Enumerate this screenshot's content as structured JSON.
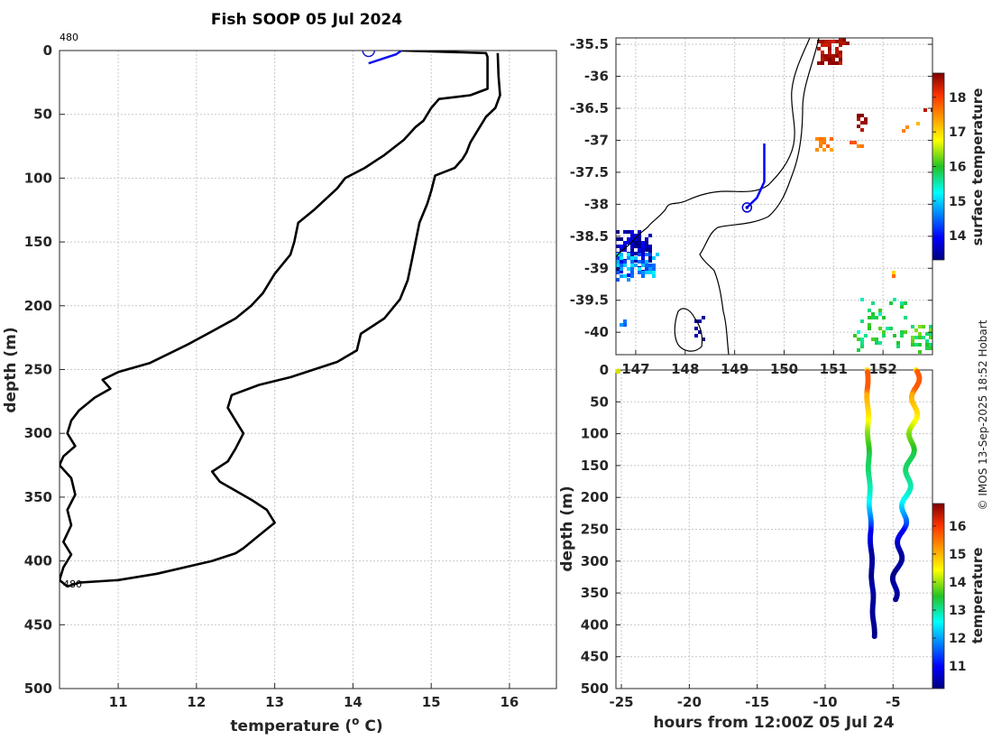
{
  "title": "Fish SOOP 05 Jul 2024",
  "credit": "© IMOS 13-Sep-2025 18:52 Hobart",
  "chart_data": [
    {
      "id": "profile",
      "type": "line",
      "xlabel_main": "temperature (",
      "xlabel_sup": "o",
      "xlabel_end": " C)",
      "ylabel": "depth (m)",
      "xlim": [
        10.25,
        16.6
      ],
      "ylim": [
        500,
        0
      ],
      "xticks": [
        11,
        12,
        13,
        14,
        15,
        16
      ],
      "yticks": [
        0,
        50,
        100,
        150,
        200,
        250,
        300,
        350,
        400,
        450,
        500
      ],
      "start_label": "480",
      "end_label": "480",
      "start_marker": {
        "t": 14.2,
        "d": 0
      },
      "recent_segment": [
        [
          14.2,
          10
        ],
        [
          14.55,
          3
        ],
        [
          14.62,
          0
        ]
      ],
      "series": [
        {
          "name": "downcast",
          "points": [
            [
              14.62,
              0
            ],
            [
              15.7,
              2
            ],
            [
              15.72,
              5
            ],
            [
              15.72,
              30
            ],
            [
              15.5,
              35
            ],
            [
              15.1,
              38
            ],
            [
              15.0,
              45
            ],
            [
              14.9,
              55
            ],
            [
              14.8,
              60
            ],
            [
              14.65,
              70
            ],
            [
              14.4,
              82
            ],
            [
              14.3,
              86
            ],
            [
              14.15,
              92
            ],
            [
              13.9,
              100
            ],
            [
              13.8,
              108
            ],
            [
              13.5,
              125
            ],
            [
              13.3,
              135
            ],
            [
              13.25,
              150
            ],
            [
              13.2,
              160
            ],
            [
              13.0,
              175
            ],
            [
              12.85,
              190
            ],
            [
              12.7,
              200
            ],
            [
              12.5,
              210
            ],
            [
              12.2,
              220
            ],
            [
              11.9,
              230
            ],
            [
              11.4,
              245
            ],
            [
              11.0,
              252
            ],
            [
              10.8,
              258
            ],
            [
              10.9,
              265
            ],
            [
              10.7,
              272
            ],
            [
              10.5,
              282
            ],
            [
              10.4,
              290
            ],
            [
              10.35,
              300
            ],
            [
              10.45,
              310
            ],
            [
              10.3,
              318
            ],
            [
              10.25,
              325
            ],
            [
              10.4,
              335
            ],
            [
              10.45,
              348
            ],
            [
              10.35,
              360
            ],
            [
              10.4,
              372
            ],
            [
              10.3,
              385
            ],
            [
              10.4,
              395
            ],
            [
              10.3,
              405
            ],
            [
              10.25,
              415
            ],
            [
              10.35,
              420
            ]
          ]
        },
        {
          "name": "upcast",
          "points": [
            [
              10.35,
              420
            ],
            [
              10.5,
              417
            ],
            [
              11.0,
              415
            ],
            [
              11.5,
              410
            ],
            [
              12.2,
              400
            ],
            [
              12.5,
              394
            ],
            [
              12.6,
              390
            ],
            [
              12.8,
              380
            ],
            [
              13.0,
              370
            ],
            [
              12.9,
              360
            ],
            [
              12.7,
              352
            ],
            [
              12.5,
              345
            ],
            [
              12.3,
              338
            ],
            [
              12.2,
              330
            ],
            [
              12.4,
              322
            ],
            [
              12.5,
              312
            ],
            [
              12.6,
              300
            ],
            [
              12.5,
              290
            ],
            [
              12.4,
              280
            ],
            [
              12.45,
              270
            ],
            [
              12.8,
              262
            ],
            [
              13.2,
              256
            ],
            [
              13.5,
              250
            ],
            [
              13.8,
              244
            ],
            [
              14.05,
              235
            ],
            [
              14.1,
              222
            ],
            [
              14.4,
              210
            ],
            [
              14.6,
              195
            ],
            [
              14.7,
              180
            ],
            [
              14.75,
              165
            ],
            [
              14.8,
              150
            ],
            [
              14.85,
              135
            ],
            [
              14.95,
              120
            ],
            [
              15.0,
              110
            ],
            [
              15.05,
              98
            ],
            [
              15.3,
              92
            ],
            [
              15.4,
              85
            ],
            [
              15.45,
              80
            ],
            [
              15.5,
              72
            ],
            [
              15.6,
              62
            ],
            [
              15.7,
              52
            ],
            [
              15.82,
              45
            ],
            [
              15.88,
              35
            ],
            [
              15.86,
              20
            ],
            [
              15.85,
              2
            ]
          ]
        }
      ]
    },
    {
      "id": "map",
      "type": "heatmap",
      "xticks": [
        147,
        148,
        149,
        150,
        151,
        152
      ],
      "yticks": [
        -35.5,
        -36,
        -36.5,
        -37,
        -37.5,
        -38,
        -38.5,
        -39,
        -39.5,
        -40
      ],
      "xlim": [
        146.6,
        153.0
      ],
      "ylim": [
        -40.35,
        -35.4
      ],
      "colorbar": {
        "label": "surface temperature",
        "ticks": [
          14,
          15,
          16,
          17,
          18
        ],
        "range": [
          13.3,
          18.7
        ]
      },
      "track": [
        [
          149.6,
          -37.05
        ],
        [
          149.6,
          -37.65
        ],
        [
          149.45,
          -37.9
        ],
        [
          149.25,
          -38.05
        ]
      ],
      "position": [
        149.25,
        -38.05
      ]
    },
    {
      "id": "timeseries",
      "type": "scatter",
      "xlabel": "hours from 12:00Z 05 Jul 24",
      "ylabel": "depth (m)",
      "xlim": [
        -25.4,
        -2.1
      ],
      "ylim": [
        500,
        0
      ],
      "xticks": [
        -25,
        -20,
        -15,
        -10,
        -5
      ],
      "yticks": [
        0,
        50,
        100,
        150,
        200,
        250,
        300,
        350,
        400,
        450,
        500
      ],
      "colorbar": {
        "label": "temperature",
        "ticks": [
          11,
          12,
          13,
          14,
          15,
          16
        ],
        "range": [
          10.2,
          16.8
        ]
      }
    }
  ]
}
